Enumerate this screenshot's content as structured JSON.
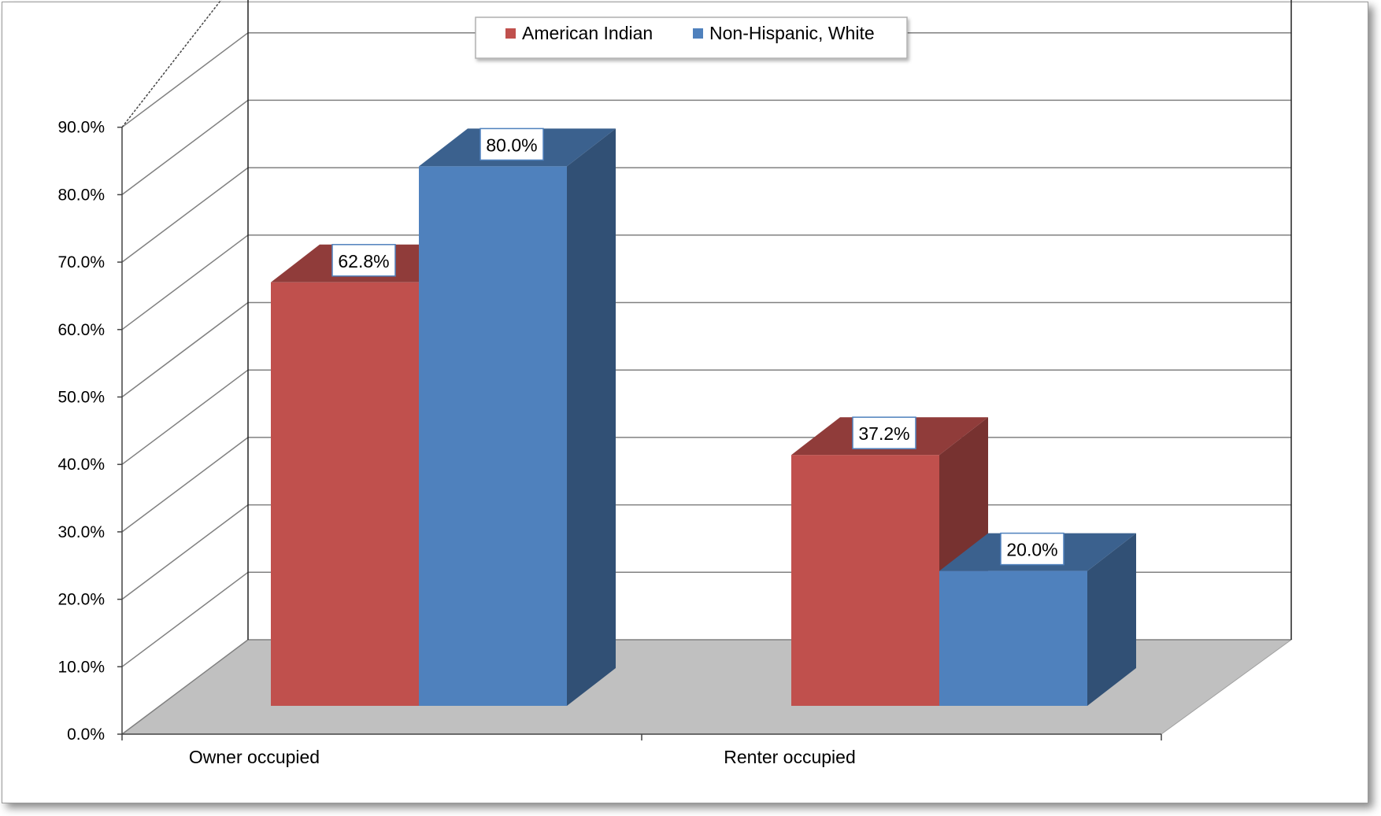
{
  "chart_data": {
    "type": "bar",
    "title": "",
    "xlabel": "",
    "ylabel": "",
    "categories": [
      "Owner occupied",
      "Renter occupied"
    ],
    "series": [
      {
        "name": "American Indian",
        "values": [
          62.8,
          37.2
        ],
        "labels": [
          "62.8%",
          "37.2%"
        ],
        "color": "#c0504d"
      },
      {
        "name": "Non-Hispanic, White",
        "values": [
          80.0,
          20.0
        ],
        "labels": [
          "80.0%",
          "20.0%"
        ],
        "color": "#4f81bd"
      }
    ],
    "ylim": [
      0,
      90
    ],
    "yticks": [
      {
        "value": 0,
        "label": "0.0%"
      },
      {
        "value": 10,
        "label": "10.0%"
      },
      {
        "value": 20,
        "label": "20.0%"
      },
      {
        "value": 30,
        "label": "30.0%"
      },
      {
        "value": 40,
        "label": "40.0%"
      },
      {
        "value": 50,
        "label": "50.0%"
      },
      {
        "value": 60,
        "label": "60.0%"
      },
      {
        "value": 70,
        "label": "70.0%"
      },
      {
        "value": 80,
        "label": "80.0%"
      },
      {
        "value": 90,
        "label": "90.0%"
      }
    ],
    "grid": true,
    "legend": "top-center",
    "style": "3d-clustered-column",
    "colors": {
      "floor": "#c0c0c0",
      "grid": "#808080"
    }
  }
}
